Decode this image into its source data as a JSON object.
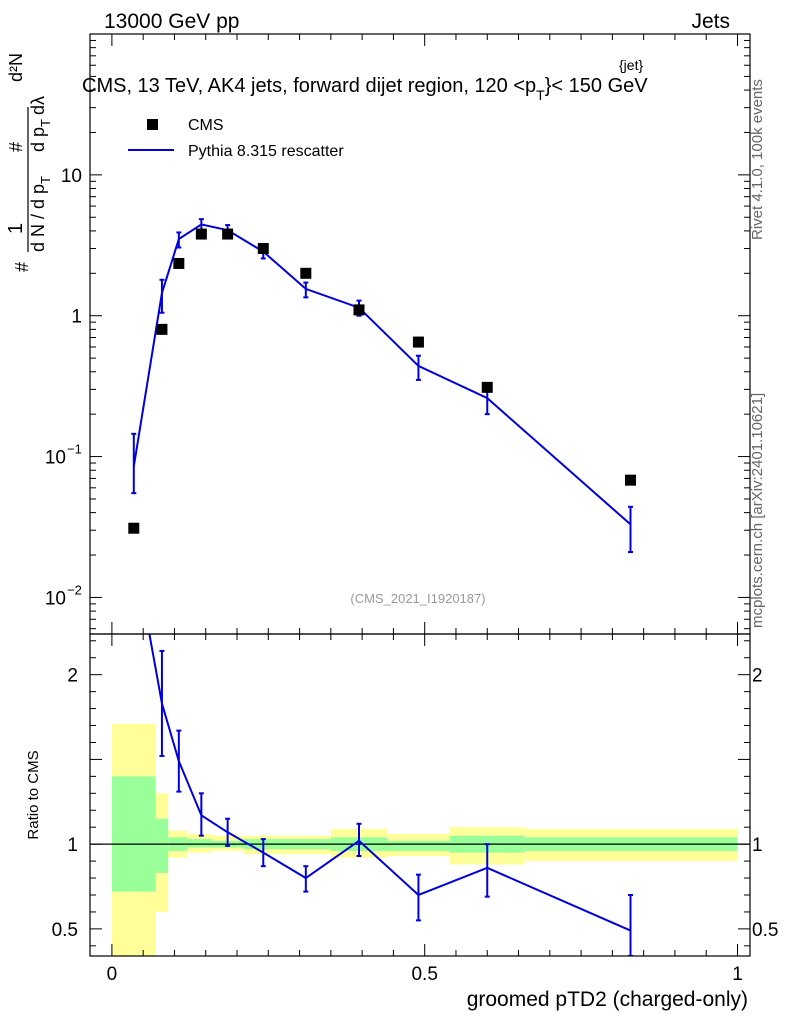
{
  "header": {
    "left": "13000 GeV pp",
    "right": "Jets"
  },
  "side_labels": {
    "rivet": "Rivet 4.1.0,  100k events",
    "mcplots": "mcplots.cern.ch [arXiv:2401.10621]"
  },
  "colors": {
    "mc_line": "#0000dd",
    "data_marker": "#000000",
    "band_inner": "#99ff99",
    "band_outer": "#ffff99"
  },
  "chart_data": [
    {
      "type": "scatter",
      "panel": "main",
      "title": "CMS, 13 TeV, AK4 jets, forward dijet region, 120 <p",
      "title_sup": "{jet}",
      "title_sub": "T",
      "title_end": "}< 150 GeV",
      "ylabel": {
        "parts": [
          "#",
          "1",
          "d N / d p",
          "T",
          "#",
          "d p",
          "T",
          "dλ",
          "d²N"
        ]
      },
      "yscale": "log",
      "ylim": [
        0.0055,
        100
      ],
      "xlim": [
        -0.035,
        1.02
      ],
      "y_tick_labels": [
        {
          "value": 0.01,
          "base": "10",
          "exp": "−2"
        },
        {
          "value": 0.1,
          "base": "10",
          "exp": "−1"
        },
        {
          "value": 1,
          "label": "1"
        },
        {
          "value": 10,
          "label": "10"
        }
      ],
      "watermark": "(CMS_2021_I1920187)",
      "legend": {
        "position": "top-left",
        "entries": [
          {
            "name": "CMS",
            "style": "marker"
          },
          {
            "name": "Pythia 8.315 rescatter",
            "style": "line"
          }
        ]
      },
      "series": [
        {
          "name": "CMS",
          "x": [
            0.035,
            0.08,
            0.107,
            0.143,
            0.185,
            0.242,
            0.31,
            0.395,
            0.49,
            0.6,
            0.829
          ],
          "y": [
            0.031,
            0.8,
            2.35,
            3.8,
            3.8,
            3.0,
            2.0,
            1.1,
            0.65,
            0.31,
            0.068
          ]
        },
        {
          "name": "Pythia 8.315 rescatter",
          "x": [
            0.035,
            0.08,
            0.107,
            0.143,
            0.185,
            0.242,
            0.31,
            0.395,
            0.49,
            0.6,
            0.829
          ],
          "y": [
            0.085,
            1.45,
            3.5,
            4.45,
            4.05,
            2.85,
            1.55,
            1.14,
            0.44,
            0.26,
            0.033
          ],
          "err_low": [
            0.055,
            1.05,
            3.05,
            4.05,
            3.7,
            2.55,
            1.35,
            1.0,
            0.35,
            0.2,
            0.021
          ],
          "err_high": [
            0.145,
            1.8,
            3.9,
            4.85,
            4.4,
            3.15,
            1.72,
            1.28,
            0.52,
            0.33,
            0.044
          ]
        }
      ]
    },
    {
      "type": "line",
      "panel": "ratio",
      "ylabel": "Ratio to CMS",
      "xlabel": "groomed pTD2 (charged-only)",
      "xlim": [
        -0.035,
        1.02
      ],
      "ylim": [
        0.34,
        2.24
      ],
      "x_tick_labels": [
        {
          "value": 0,
          "label": "0"
        },
        {
          "value": 0.5,
          "label": "0.5"
        },
        {
          "value": 1,
          "label": "1"
        }
      ],
      "y_tick_labels": [
        {
          "value": 0.5,
          "label": "0.5"
        },
        {
          "value": 1,
          "label": "1"
        },
        {
          "value": 2,
          "label": "2"
        }
      ],
      "reference": 1.0,
      "bands": [
        {
          "x0": 0.0,
          "x1": 0.07,
          "inner": [
            0.72,
            1.4
          ],
          "outer": [
            0.34,
            1.71
          ]
        },
        {
          "x0": 0.07,
          "x1": 0.09,
          "inner": [
            0.83,
            1.15
          ],
          "outer": [
            0.6,
            1.3
          ]
        },
        {
          "x0": 0.09,
          "x1": 0.12,
          "inner": [
            0.96,
            1.04
          ],
          "outer": [
            0.92,
            1.08
          ]
        },
        {
          "x0": 0.12,
          "x1": 0.16,
          "inner": [
            0.98,
            1.03
          ],
          "outer": [
            0.95,
            1.06
          ]
        },
        {
          "x0": 0.16,
          "x1": 0.21,
          "inner": [
            0.98,
            1.02
          ],
          "outer": [
            0.96,
            1.05
          ]
        },
        {
          "x0": 0.21,
          "x1": 0.35,
          "inner": [
            0.97,
            1.03
          ],
          "outer": [
            0.94,
            1.05
          ]
        },
        {
          "x0": 0.35,
          "x1": 0.44,
          "inner": [
            0.96,
            1.04
          ],
          "outer": [
            0.92,
            1.09
          ]
        },
        {
          "x0": 0.44,
          "x1": 0.54,
          "inner": [
            0.96,
            1.02
          ],
          "outer": [
            0.93,
            1.06
          ]
        },
        {
          "x0": 0.54,
          "x1": 0.66,
          "inner": [
            0.95,
            1.05
          ],
          "outer": [
            0.88,
            1.1
          ]
        },
        {
          "x0": 0.66,
          "x1": 1.0,
          "inner": [
            0.96,
            1.04
          ],
          "outer": [
            0.9,
            1.09
          ]
        }
      ],
      "series": [
        {
          "name": "Pythia 8.315 rescatter / CMS",
          "x": [
            0.035,
            0.08,
            0.107,
            0.143,
            0.185,
            0.242,
            0.31,
            0.395,
            0.49,
            0.6,
            0.829
          ],
          "y": [
            2.75,
            1.83,
            1.49,
            1.17,
            1.07,
            0.95,
            0.8,
            1.02,
            0.7,
            0.86,
            0.49
          ],
          "err_low": [
            2.75,
            1.52,
            1.31,
            1.05,
            0.99,
            0.87,
            0.72,
            0.93,
            0.55,
            0.69,
            0.34
          ],
          "err_high": [
            2.75,
            2.14,
            1.67,
            1.3,
            1.15,
            1.03,
            0.87,
            1.12,
            0.82,
            1.0,
            0.7
          ]
        }
      ]
    }
  ]
}
